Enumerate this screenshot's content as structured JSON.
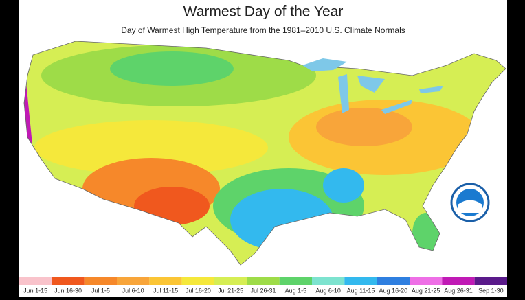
{
  "title": "Warmest Day of the Year",
  "subtitle": "Day of Warmest High Temperature from the 1981–2010 U.S. Climate Normals",
  "legend": {
    "items": [
      {
        "label": "Jun 1-15",
        "color": "#f9c3cb"
      },
      {
        "label": "Jun 16-30",
        "color": "#f0581e"
      },
      {
        "label": "Jul 1-5",
        "color": "#f6882a"
      },
      {
        "label": "Jul 6-10",
        "color": "#f8a53a"
      },
      {
        "label": "Jul 11-15",
        "color": "#fbc535"
      },
      {
        "label": "Jul 16-20",
        "color": "#f5e83b"
      },
      {
        "label": "Jul 21-25",
        "color": "#d6ee54"
      },
      {
        "label": "Jul 26-31",
        "color": "#9edc48"
      },
      {
        "label": "Aug 1-5",
        "color": "#5ed36a"
      },
      {
        "label": "Aug 6-10",
        "color": "#7de3cf"
      },
      {
        "label": "Aug 11-15",
        "color": "#33b9ee"
      },
      {
        "label": "Aug 16-20",
        "color": "#2f7fe0"
      },
      {
        "label": "Aug 21-25",
        "color": "#ee6fe6"
      },
      {
        "label": "Aug 26-31",
        "color": "#c01ab5"
      },
      {
        "label": "Sep 1-30",
        "color": "#5a1a8a"
      }
    ]
  }
}
